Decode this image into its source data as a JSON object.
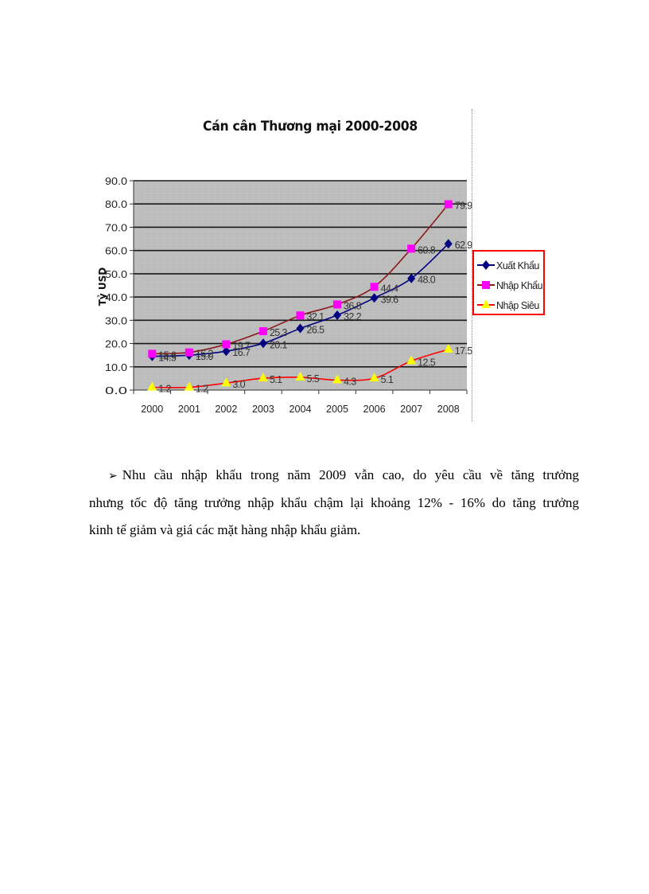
{
  "chart_data": {
    "type": "line",
    "title": "Cán cân Thương mại 2000-2008",
    "xlabel": "",
    "ylabel": "Tỷ USD",
    "ylim": [
      0,
      90
    ],
    "yticks": [
      "0.0",
      "10.0",
      "20.0",
      "30.0",
      "40.0",
      "50.0",
      "60.0",
      "70.0",
      "80.0",
      "90.0"
    ],
    "grid": true,
    "legend_position": "right",
    "categories": [
      "2000",
      "2001",
      "2002",
      "2003",
      "2004",
      "2005",
      "2006",
      "2007",
      "2008"
    ],
    "series": [
      {
        "name": "Xuất Khẩu",
        "color": "#000080",
        "marker": "diamond",
        "values": [
          14.5,
          15.0,
          16.7,
          20.1,
          26.5,
          32.2,
          39.6,
          48.0,
          62.9
        ],
        "labels": [
          "14.5",
          "15.0",
          "16.7",
          "20.1",
          "26.5",
          "32.2",
          "39.6",
          "48.0",
          "62.9"
        ]
      },
      {
        "name": "Nhập Khẩu",
        "color": "#8B1A1A",
        "marker_color": "#FF00FF",
        "marker": "square",
        "values": [
          15.6,
          16.2,
          19.7,
          25.3,
          32.1,
          36.8,
          44.4,
          60.8,
          79.9
        ],
        "labels": [
          "15.6",
          "16.2",
          "19.7",
          "25.3",
          "32.1",
          "36.8",
          "44.4",
          "60.8",
          "79.9"
        ]
      },
      {
        "name": "Nhập Siêu",
        "color": "#FF0000",
        "marker_color": "#FFFF00",
        "marker": "triangle",
        "values": [
          1.2,
          1.2,
          3.0,
          5.1,
          5.5,
          4.3,
          5.1,
          12.5,
          17.5
        ],
        "labels": [
          "1.2",
          "1.2",
          "3.0",
          "5.1",
          "5.5",
          "4.3",
          "5.1",
          "12.5",
          "17.5"
        ]
      }
    ],
    "plot_background": "#C0C0C0",
    "legend_border": "#FF0000"
  },
  "document": {
    "bullet_glyph": "➢",
    "paragraph_lines": [
      "Nhu cầu nhập khẩu trong năm 2009 vẫn cao, do yêu cầu về tăng trưởng",
      "nhưng tốc độ tăng trưởng nhập khẩu chậm lại  khoảng 12% - 16% do tăng trưởng",
      "kinh tế giảm và giá các mặt hàng nhập khẩu giảm."
    ]
  }
}
